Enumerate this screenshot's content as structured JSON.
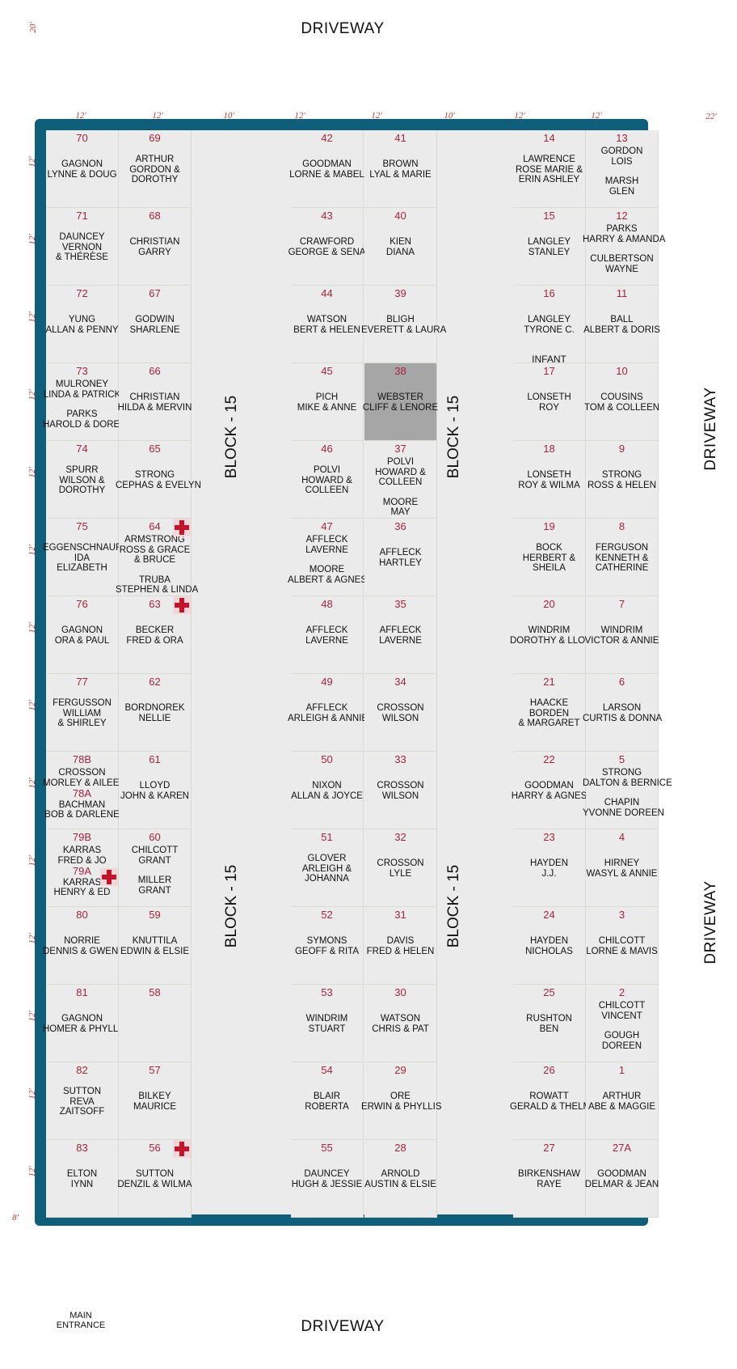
{
  "driveways": {
    "top": "DRIVEWAY",
    "bottom": "DRIVEWAY",
    "right_upper": "DRIVEWAY",
    "right_lower": "DRIVEWAY"
  },
  "main_entrance": "MAIN ENTRANCE",
  "measurements": {
    "corner_top": "20'",
    "corner_right": "22'",
    "corner_bottom": "8'",
    "column_widths": [
      "12'",
      "12'",
      "10'",
      "12'",
      "12'",
      "10'",
      "12'",
      "12'"
    ],
    "row_height": "12'"
  },
  "block_label": "BLOCK - 15",
  "colors": {
    "frame": "#0f5f7a",
    "plot_number": "#a6243a",
    "measurement": "#c0392b",
    "cross": "#c4142c",
    "highlight": "#a6a6a6"
  },
  "columns": [
    [
      {
        "num": "70",
        "lines": [
          "GAGNON",
          "LYNNE  &  DOUG"
        ]
      },
      {
        "num": "71",
        "lines": [
          "DAUNCEY",
          "VERNON",
          "& THÉRÈSE"
        ]
      },
      {
        "num": "72",
        "lines": [
          "YUNG",
          "ALLAN & PENNY"
        ]
      },
      {
        "num": "73",
        "lines": [
          "MULRONEY",
          "LINDA & PATRICK",
          "",
          "PARKS",
          "HAROLD & DOREEN"
        ]
      },
      {
        "num": "74",
        "lines": [
          "SPURR",
          "WILSON &",
          "DOROTHY"
        ]
      },
      {
        "num": "75",
        "lines": [
          "EGGENSCHNAUR",
          "IDA",
          "ELIZABETH"
        ]
      },
      {
        "num": "76",
        "lines": [
          "GAGNON",
          "ORA & PAUL"
        ]
      },
      {
        "num": "77",
        "lines": [
          "FERGUSSON",
          "WILLIAM",
          "& SHIRLEY"
        ]
      },
      {
        "num": "78B",
        "lines": [
          "CROSSON",
          "MORLEY & AILEEN"
        ],
        "num2": "78A",
        "lines2": [
          "BACHMAN",
          "BOB & DARLENE"
        ]
      },
      {
        "num": "79B",
        "lines": [
          "KARRAS",
          "FRED & JO"
        ],
        "num2": "79A",
        "lines2": [
          "KARRAS",
          "HENRY & ED"
        ],
        "cross": true
      },
      {
        "num": "80",
        "lines": [
          "NORRIE",
          "DENNIS & GWENDA"
        ]
      },
      {
        "num": "81",
        "lines": [
          "GAGNON",
          "HOMER & PHYLLIS"
        ]
      },
      {
        "num": "82",
        "lines": [
          "SUTTON",
          "REVA",
          "ZAITSOFF"
        ]
      },
      {
        "num": "83",
        "lines": [
          "ELTON",
          "IYNN"
        ]
      }
    ],
    [
      {
        "num": "69",
        "lines": [
          "ARTHUR",
          "GORDON &",
          "DOROTHY"
        ]
      },
      {
        "num": "68",
        "lines": [
          "CHRISTIAN",
          "GARRY"
        ]
      },
      {
        "num": "67",
        "lines": [
          "GODWIN",
          "SHARLENE"
        ]
      },
      {
        "num": "66",
        "lines": [
          "CHRISTIAN",
          "HILDA & MERVIN"
        ]
      },
      {
        "num": "65",
        "lines": [
          "STRONG",
          "CEPHAS & EVELYN"
        ]
      },
      {
        "num": "64",
        "lines": [
          "ARMSTRONG",
          "ROSS & GRACE",
          "& BRUCE",
          "",
          "TRUBA",
          "STEPHEN & LINDA"
        ],
        "cross": true
      },
      {
        "num": "63",
        "lines": [
          "BECKER",
          "FRED & ORA"
        ],
        "cross": true
      },
      {
        "num": "62",
        "lines": [
          "BORDNOREK",
          "NELLIE"
        ]
      },
      {
        "num": "61",
        "lines": [
          "LLOYD",
          "JOHN & KAREN"
        ]
      },
      {
        "num": "60",
        "lines": [
          "CHILCOTT",
          "GRANT",
          "",
          "MILLER",
          "GRANT"
        ]
      },
      {
        "num": "59",
        "lines": [
          "KNUTTILA",
          "EDWIN & ELSIE"
        ]
      },
      {
        "num": "58",
        "lines": []
      },
      {
        "num": "57",
        "lines": [
          "BILKEY",
          "MAURICE"
        ]
      },
      {
        "num": "56",
        "lines": [
          "SUTTON",
          "DENZIL & WILMA"
        ],
        "cross": true
      }
    ],
    [
      {
        "num": "42",
        "lines": [
          "GOODMAN",
          "LORNE & MABEL"
        ]
      },
      {
        "num": "43",
        "lines": [
          "CRAWFORD",
          "GEORGE & SENA"
        ]
      },
      {
        "num": "44",
        "lines": [
          "WATSON",
          "BERT & HELEN"
        ]
      },
      {
        "num": "45",
        "lines": [
          "PICH",
          "MIKE & ANNE"
        ]
      },
      {
        "num": "46",
        "lines": [
          "POLVI",
          "HOWARD &",
          "COLLEEN"
        ]
      },
      {
        "num": "47",
        "lines": [
          "AFFLECK",
          "LAVERNE",
          "",
          "MOORE",
          "ALBERT & AGNES"
        ]
      },
      {
        "num": "48",
        "lines": [
          "AFFLECK",
          "LAVERNE"
        ]
      },
      {
        "num": "49",
        "lines": [
          "AFFLECK",
          "ARLEIGH & ANNIE"
        ]
      },
      {
        "num": "50",
        "lines": [
          "NIXON",
          "ALLAN & JOYCE"
        ]
      },
      {
        "num": "51",
        "lines": [
          "GLOVER",
          "ARLEIGH &",
          "JOHANNA"
        ]
      },
      {
        "num": "52",
        "lines": [
          "SYMONS",
          "GEOFF & RITA"
        ]
      },
      {
        "num": "53",
        "lines": [
          "WINDRIM",
          "STUART"
        ]
      },
      {
        "num": "54",
        "lines": [
          "BLAIR",
          "ROBERTA"
        ]
      },
      {
        "num": "55",
        "lines": [
          "DAUNCEY",
          "HUGH & JESSIE"
        ]
      }
    ],
    [
      {
        "num": "41",
        "lines": [
          "BROWN",
          "LYAL & MARIE"
        ]
      },
      {
        "num": "40",
        "lines": [
          "KIEN",
          "DIANA"
        ]
      },
      {
        "num": "39",
        "lines": [
          "BLIGH",
          "EVERETT & LAURA"
        ]
      },
      {
        "num": "38",
        "lines": [
          "WEBSTER",
          "CLIFF & LENORE"
        ],
        "highlight": true
      },
      {
        "num": "37",
        "lines": [
          "POLVI",
          "HOWARD &",
          "COLLEEN",
          "",
          "MOORE",
          "MAY"
        ]
      },
      {
        "num": "36",
        "lines": [
          "AFFLECK",
          "HARTLEY"
        ]
      },
      {
        "num": "35",
        "lines": [
          "AFFLECK",
          "LAVERNE"
        ]
      },
      {
        "num": "34",
        "lines": [
          "CROSSON",
          "WILSON"
        ]
      },
      {
        "num": "33",
        "lines": [
          "CROSSON",
          "WILSON"
        ]
      },
      {
        "num": "32",
        "lines": [
          "CROSSON",
          "LYLE"
        ]
      },
      {
        "num": "31",
        "lines": [
          "DAVIS",
          "FRED & HELEN"
        ]
      },
      {
        "num": "30",
        "lines": [
          "WATSON",
          "CHRIS & PAT"
        ]
      },
      {
        "num": "29",
        "lines": [
          "ORE",
          "ERWIN & PHYLLIS"
        ]
      },
      {
        "num": "28",
        "lines": [
          "ARNOLD",
          "AUSTIN & ELSIE"
        ]
      }
    ],
    [
      {
        "num": "14",
        "lines": [
          "LAWRENCE",
          "ROSE MARIE &",
          "ERIN ASHLEY"
        ]
      },
      {
        "num": "15",
        "lines": [
          "LANGLEY",
          "STANLEY"
        ]
      },
      {
        "num": "16",
        "lines": [
          "LANGLEY",
          "TYRONE C."
        ],
        "infant": "INFANT"
      },
      {
        "num": "17",
        "lines": [
          "LONSETH",
          "ROY"
        ]
      },
      {
        "num": "18",
        "lines": [
          "LONSETH",
          "ROY & WILMA"
        ]
      },
      {
        "num": "19",
        "lines": [
          "BOCK",
          "HERBERT &",
          "SHEILA"
        ]
      },
      {
        "num": "20",
        "lines": [
          "WINDRIM",
          "DOROTHY & LLOYD"
        ]
      },
      {
        "num": "21",
        "lines": [
          "HAACKE",
          "BORDEN",
          "& MARGARET"
        ]
      },
      {
        "num": "22",
        "lines": [
          "GOODMAN",
          "HARRY & AGNES"
        ]
      },
      {
        "num": "23",
        "lines": [
          "HAYDEN",
          "J.J."
        ]
      },
      {
        "num": "24",
        "lines": [
          "HAYDEN",
          "NICHOLAS"
        ]
      },
      {
        "num": "25",
        "lines": [
          "RUSHTON",
          "BEN"
        ]
      },
      {
        "num": "26",
        "lines": [
          "ROWATT",
          "GERALD & THELMA"
        ]
      },
      {
        "num": "27",
        "lines": [
          "BIRKENSHAW",
          "RAYE"
        ]
      }
    ],
    [
      {
        "num": "13",
        "lines": [
          "GORDON",
          "LOIS",
          "",
          "MARSH",
          "GLEN"
        ]
      },
      {
        "num": "12",
        "lines": [
          "PARKS",
          "HARRY & AMANDA",
          "",
          "CULBERTSON",
          "WAYNE"
        ]
      },
      {
        "num": "11",
        "lines": [
          "BALL",
          "ALBERT & DORIS"
        ]
      },
      {
        "num": "10",
        "lines": [
          "COUSINS",
          "TOM & COLLEEN"
        ]
      },
      {
        "num": "9",
        "lines": [
          "STRONG",
          "ROSS & HELEN"
        ]
      },
      {
        "num": "8",
        "lines": [
          "FERGUSON",
          "KENNETH &",
          "CATHERINE"
        ]
      },
      {
        "num": "7",
        "lines": [
          "WINDRIM",
          "VICTOR & ANNIE"
        ]
      },
      {
        "num": "6",
        "lines": [
          "LARSON",
          "CURTIS & DONNA"
        ]
      },
      {
        "num": "5",
        "lines": [
          "STRONG",
          "DALTON & BERNICE",
          "",
          "CHAPIN",
          "YVONNE DOREEN"
        ]
      },
      {
        "num": "4",
        "lines": [
          "HIRNEY",
          "WASYL & ANNIE"
        ]
      },
      {
        "num": "3",
        "lines": [
          "CHILCOTT",
          "LORNE & MAVIS"
        ]
      },
      {
        "num": "2",
        "lines": [
          "CHILCOTT",
          "VINCENT",
          "",
          "GOUGH",
          "DOREEN"
        ]
      },
      {
        "num": "1",
        "lines": [
          "ARTHUR",
          "ABE & MAGGIE"
        ]
      },
      {
        "num": "27A",
        "lines": [
          "GOODMAN",
          "DELMAR & JEAN"
        ]
      }
    ]
  ]
}
